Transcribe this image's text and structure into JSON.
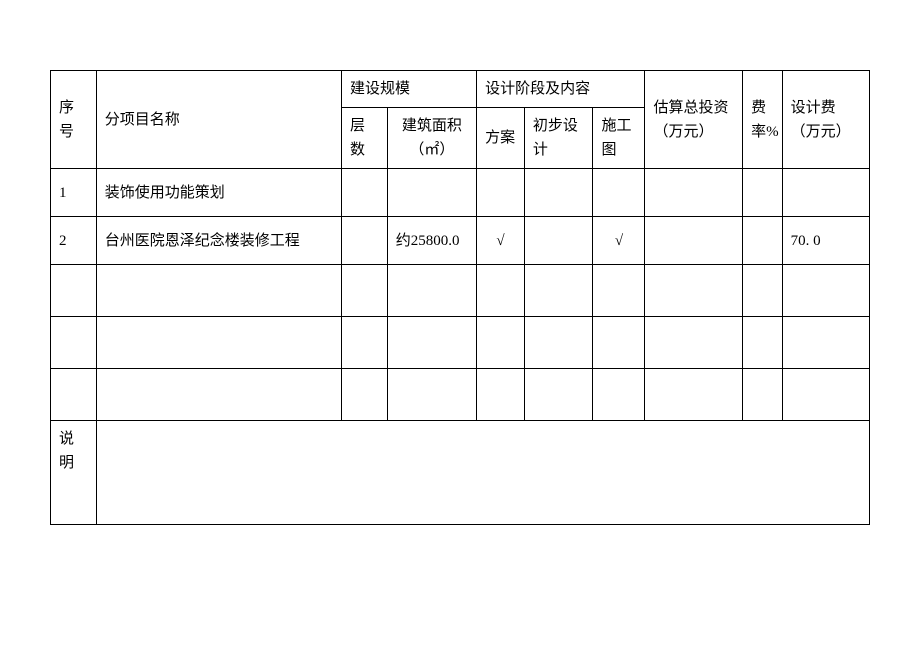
{
  "table": {
    "header": {
      "seq": "序号",
      "name": "分项目名称",
      "scale_group": "建设规模",
      "floors": "层数",
      "area": "建筑面积（㎡）",
      "stage_group": "设计阶段及内容",
      "plan": "方案",
      "prelim": "初步设计",
      "constr": "施工图",
      "invest": "估算总投资（万元）",
      "rate": "费率%",
      "fee": "设计费（万元）"
    },
    "rows": [
      {
        "seq": "1",
        "name": "装饰使用功能策划",
        "floors": "",
        "area": "",
        "plan": "",
        "prelim": "",
        "constr": "",
        "invest": "",
        "rate": "",
        "fee": ""
      },
      {
        "seq": "2",
        "name": "台州医院恩泽纪念楼装修工程",
        "floors": "",
        "area": "约25800.0",
        "plan": "√",
        "prelim": "",
        "constr": "√",
        "invest": "",
        "rate": "",
        "fee": "70. 0"
      }
    ],
    "note_label": "说明",
    "note_content": "",
    "colors": {
      "background": "#ffffff",
      "border": "#000000",
      "text": "#000000"
    },
    "font_size": 15
  }
}
